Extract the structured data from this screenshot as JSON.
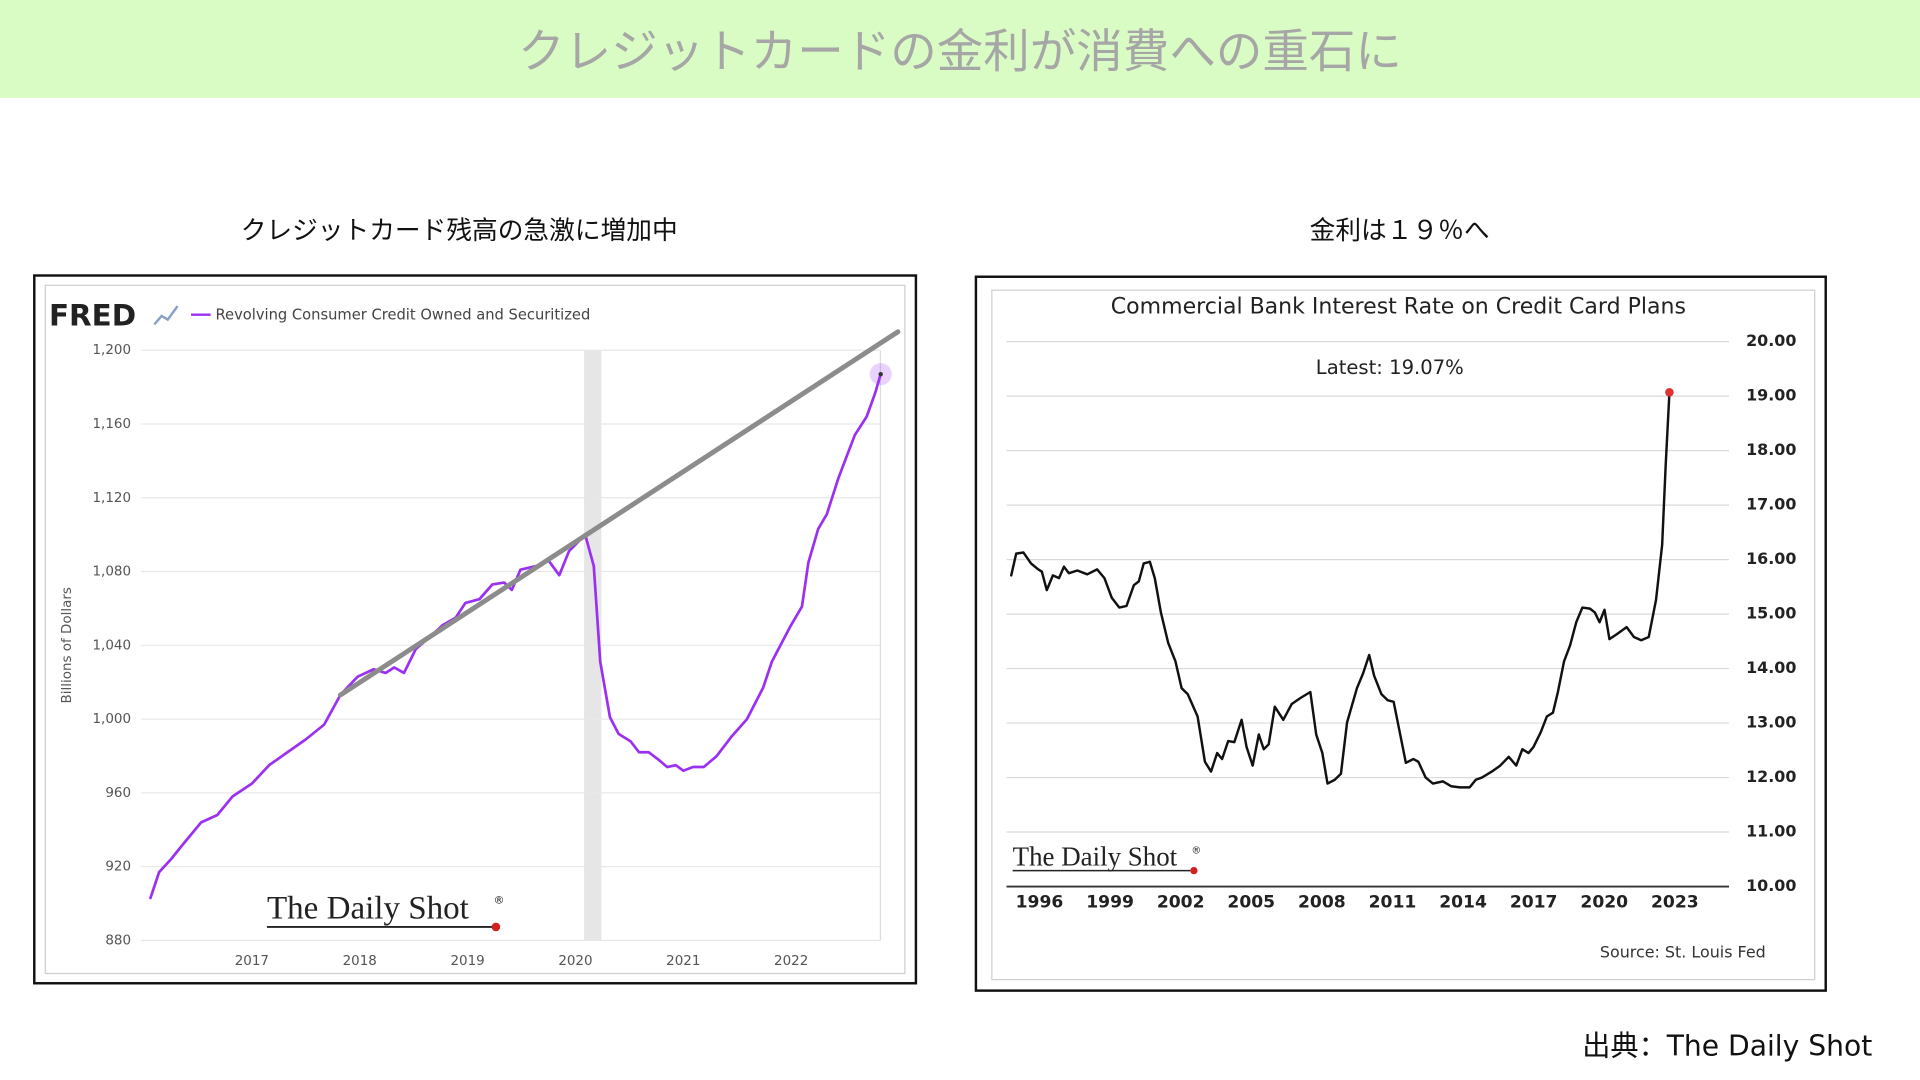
{
  "slide": {
    "title": "クレジットカードの金利が消費への重石に",
    "source": "出典：The Daily Shot"
  },
  "chart_data": [
    {
      "type": "line",
      "caption": "クレジットカード残高の急激に増加中",
      "brand": "FRED",
      "y_label": "Billions of Dollars",
      "watermark": "The Daily Shot",
      "watermark_mark": "®",
      "x": [
        2016.06,
        2016.14,
        2016.25,
        2016.36,
        2016.53,
        2016.68,
        2016.82,
        2017.0,
        2017.16,
        2017.33,
        2017.5,
        2017.67,
        2017.82,
        2017.98,
        2018.13,
        2018.24,
        2018.32,
        2018.41,
        2018.52,
        2018.66,
        2018.77,
        2018.89,
        2018.98,
        2019.11,
        2019.23,
        2019.34,
        2019.41,
        2019.49,
        2019.64,
        2019.75,
        2019.85,
        2019.94,
        2020.09,
        2020.17,
        2020.23,
        2020.32,
        2020.4,
        2020.51,
        2020.59,
        2020.68,
        2020.77,
        2020.85,
        2020.93,
        2021.0,
        2021.09,
        2021.19,
        2021.31,
        2021.44,
        2021.59,
        2021.74,
        2021.82,
        2021.99,
        2022.1,
        2022.16,
        2022.25,
        2022.33,
        2022.44,
        2022.59,
        2022.7,
        2022.78,
        2022.83
      ],
      "series": [
        {
          "name": "Revolving Consumer Credit Owned and Securitized",
          "color": "#9b30f2",
          "values": [
            903,
            917,
            924,
            932,
            944,
            948,
            958,
            965,
            975,
            982,
            989,
            997,
            1013,
            1023,
            1027,
            1025,
            1028,
            1025,
            1038,
            1045,
            1051,
            1055,
            1063,
            1065,
            1073,
            1074,
            1070,
            1081,
            1083,
            1086,
            1078,
            1091,
            1100,
            1083,
            1031,
            1001,
            992,
            988,
            982,
            982,
            978,
            974,
            975,
            972,
            974,
            974,
            980,
            990,
            1000,
            1017,
            1031,
            1050,
            1061,
            1085,
            1103,
            1111,
            1131,
            1154,
            1164,
            1177,
            1187
          ]
        }
      ],
      "trend": {
        "x": [
          2017.82,
          2022.99
        ],
        "values": [
          1013,
          1210
        ],
        "color": "#8c8c8c"
      },
      "shaded_x": [
        2020.08,
        2020.24
      ],
      "xlim": [
        2016.05,
        2022.85
      ],
      "xticks": [
        2017,
        2018,
        2019,
        2020,
        2021,
        2022
      ],
      "ylim": [
        880,
        1200
      ],
      "yticks": [
        880,
        920,
        960,
        {
          "value": 1000,
          "label": "1,000"
        },
        {
          "value": 1040,
          "label": "1,040"
        },
        {
          "value": 1080,
          "label": "1,080"
        },
        {
          "value": 1120,
          "label": "1,120"
        },
        {
          "value": 1160,
          "label": "1,160"
        },
        {
          "value": 1200,
          "label": "1,200"
        }
      ],
      "grid": true
    },
    {
      "type": "line",
      "caption": "金利は１９％へ",
      "title": "Commercial Bank Interest Rate on Credit Card Plans",
      "annotation": "Latest:  19.07%",
      "source": "Source: St. Louis Fed",
      "watermark": "The Daily Shot",
      "watermark_mark": "®",
      "x": [
        1994.8,
        1995.01,
        1995.32,
        1995.64,
        1995.95,
        1996.1,
        1996.31,
        1996.57,
        1996.83,
        1997.04,
        1997.25,
        1997.61,
        1998.03,
        1998.45,
        1998.76,
        1999.07,
        1999.39,
        1999.7,
        2000.01,
        2000.22,
        2000.43,
        2000.69,
        2000.9,
        2001.16,
        2001.47,
        2001.78,
        2002.04,
        2002.3,
        2002.72,
        2003.03,
        2003.29,
        2003.55,
        2003.76,
        2004.02,
        2004.28,
        2004.59,
        2004.8,
        2005.06,
        2005.32,
        2005.53,
        2005.74,
        2006.0,
        2006.36,
        2006.72,
        2007.09,
        2007.51,
        2007.76,
        2008.02,
        2008.24,
        2008.55,
        2008.81,
        2009.07,
        2009.49,
        2009.75,
        2010.01,
        2010.22,
        2010.53,
        2010.79,
        2011.05,
        2011.31,
        2011.57,
        2011.89,
        2012.1,
        2012.41,
        2012.72,
        2013.14,
        2013.5,
        2013.86,
        2014.28,
        2014.54,
        2014.8,
        2015.22,
        2015.58,
        2015.94,
        2016.26,
        2016.52,
        2016.78,
        2016.99,
        2017.3,
        2017.56,
        2017.82,
        2018.03,
        2018.29,
        2018.55,
        2018.81,
        2019.07,
        2019.39,
        2019.6,
        2019.8,
        2020.01,
        2020.22,
        2020.53,
        2020.95,
        2021.26,
        2021.57,
        2021.89,
        2022.2,
        2022.46,
        2022.61,
        2022.77
      ],
      "values": [
        15.71,
        16.11,
        16.13,
        15.93,
        15.82,
        15.78,
        15.44,
        15.71,
        15.66,
        15.87,
        15.75,
        15.8,
        15.73,
        15.82,
        15.66,
        15.3,
        15.12,
        15.15,
        15.53,
        15.6,
        15.93,
        15.96,
        15.66,
        15.03,
        14.47,
        14.13,
        13.64,
        13.53,
        13.12,
        12.29,
        12.11,
        12.45,
        12.34,
        12.67,
        12.65,
        13.06,
        12.56,
        12.22,
        12.79,
        12.52,
        12.61,
        13.3,
        13.06,
        13.35,
        13.46,
        13.57,
        12.79,
        12.45,
        11.89,
        11.96,
        12.07,
        13.01,
        13.64,
        13.91,
        14.25,
        13.87,
        13.53,
        13.42,
        13.39,
        12.83,
        12.27,
        12.34,
        12.29,
        12.0,
        11.89,
        11.93,
        11.84,
        11.82,
        11.82,
        11.96,
        12.0,
        12.11,
        12.22,
        12.38,
        12.22,
        12.52,
        12.45,
        12.56,
        12.83,
        13.12,
        13.19,
        13.57,
        14.13,
        14.43,
        14.85,
        15.12,
        15.1,
        15.03,
        14.85,
        15.08,
        14.54,
        14.63,
        14.76,
        14.58,
        14.52,
        14.58,
        15.26,
        16.27,
        17.73,
        19.07
      ],
      "color": "#111111",
      "last_point_color": "#e03030",
      "xlim": [
        1994.6,
        2025.3
      ],
      "xticks": [
        1996,
        1999,
        2002,
        2005,
        2008,
        2011,
        2014,
        2017,
        2020,
        2023
      ],
      "ylim": [
        10,
        20
      ],
      "yticks": [
        {
          "value": 10,
          "label": "10.00"
        },
        {
          "value": 11,
          "label": "11.00"
        },
        {
          "value": 12,
          "label": "12.00"
        },
        {
          "value": 13,
          "label": "13.00"
        },
        {
          "value": 14,
          "label": "14.00"
        },
        {
          "value": 15,
          "label": "15.00"
        },
        {
          "value": 16,
          "label": "16.00"
        },
        {
          "value": 17,
          "label": "17.00"
        },
        {
          "value": 18,
          "label": "18.00"
        },
        {
          "value": 19,
          "label": "19.00"
        },
        {
          "value": 20,
          "label": "20.00"
        }
      ],
      "grid": true
    }
  ]
}
